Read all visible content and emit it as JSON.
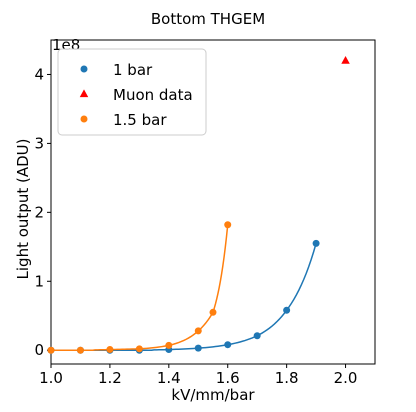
{
  "chart_data": {
    "type": "scatter",
    "title": "Bottom THGEM",
    "xlabel": "kV/mm/bar",
    "ylabel": "Light output (ADU)",
    "y_scale_label": "1e8",
    "xlim": [
      1.0,
      2.1
    ],
    "ylim": [
      -0.2,
      4.5
    ],
    "x_ticks": [
      1.0,
      1.2,
      1.4,
      1.6,
      1.8,
      2.0
    ],
    "x_tick_labels": [
      "1.0",
      "1.2",
      "1.4",
      "1.6",
      "1.8",
      "2.0"
    ],
    "y_ticks": [
      0,
      1,
      2,
      3,
      4
    ],
    "y_tick_labels": [
      "0",
      "1",
      "2",
      "3",
      "4"
    ],
    "grid": false,
    "legend_position": "top-left",
    "series": [
      {
        "name": "1 bar",
        "marker": "circle",
        "color": "#1f77b4",
        "x": [
          1.0,
          1.1,
          1.2,
          1.3,
          1.4,
          1.5,
          1.6,
          1.7,
          1.8,
          1.9
        ],
        "y": [
          0.0,
          0.0,
          0.0,
          0.0,
          0.01,
          0.03,
          0.08,
          0.21,
          0.58,
          1.55
        ],
        "fit": true
      },
      {
        "name": "Muon data",
        "marker": "triangle",
        "color": "#ff0000",
        "x": [
          2.0
        ],
        "y": [
          4.2
        ],
        "fit": false
      },
      {
        "name": "1.5 bar",
        "marker": "circle",
        "color": "#ff7f0e",
        "x": [
          1.0,
          1.1,
          1.2,
          1.3,
          1.4,
          1.5,
          1.55,
          1.6
        ],
        "y": [
          0.0,
          0.0,
          0.01,
          0.02,
          0.07,
          0.28,
          0.55,
          1.82
        ],
        "fit": true
      }
    ]
  }
}
